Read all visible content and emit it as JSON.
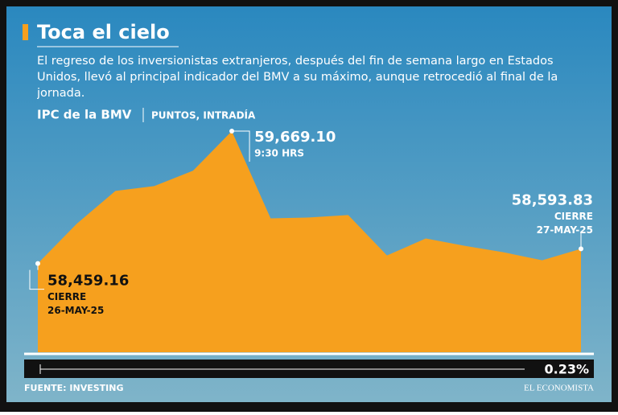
{
  "header": {
    "title": "Toca el cielo",
    "subtitle": "El regreso de los inversionistas extranjeros, después del fin de semana largo en Estados Unidos, llevó al principal indicador del BMV a su máximo, aunque retrocedió al final de la jornada."
  },
  "chart_data": {
    "type": "area",
    "title": "IPC de la BMV",
    "subtitle": "PUNTOS, INTRADÍA",
    "categories": [
      null,
      null,
      null,
      null,
      null,
      null,
      null,
      null,
      null,
      null,
      null,
      null,
      null,
      null,
      null
    ],
    "values": [
      58459.16,
      58821,
      59123,
      59167,
      59307,
      59669.1,
      58872,
      58880,
      58902,
      58533,
      58688,
      58621,
      58562,
      58489,
      58593.83
    ],
    "value_labels": [
      "58,459.16",
      null,
      null,
      null,
      null,
      "59,669.10",
      null,
      null,
      null,
      null,
      null,
      null,
      null,
      null,
      "58,593.83"
    ],
    "point_notes": [
      [
        "CIERRE",
        "26-MAY-25"
      ],
      null,
      null,
      null,
      null,
      [
        "9:30 HRS"
      ],
      null,
      null,
      null,
      null,
      null,
      null,
      null,
      null,
      [
        "CIERRE",
        "27-MAY-25"
      ]
    ],
    "color": "#f6a01e",
    "ylim": [
      57648,
      59765
    ],
    "change_label": "0.23%"
  },
  "footer": {
    "source": "FUENTE: INVESTING",
    "brand": "EL ECONOMISTA"
  }
}
